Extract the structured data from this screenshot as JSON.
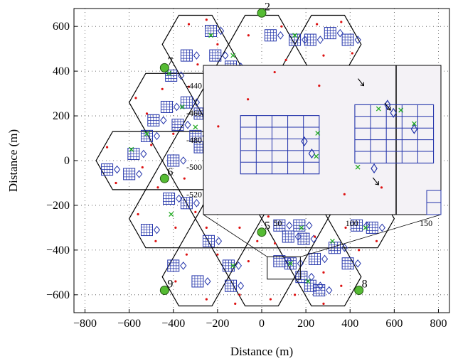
{
  "chart_data": {
    "type": "scatter",
    "xlabel": "Distance (m)",
    "ylabel": "Distance (m)",
    "xlim": [
      -850,
      850
    ],
    "ylim": [
      -680,
      680
    ],
    "x_ticks": [
      "-800",
      "-600",
      "-400",
      "-200",
      "0",
      "200",
      "400",
      "600",
      "800"
    ],
    "y_ticks": [
      "-600",
      "-400",
      "-200",
      "0",
      "200",
      "400",
      "600"
    ],
    "grid": true,
    "cell_radius": 150,
    "cells": [
      {
        "x": -300,
        "y": 520
      },
      {
        "x": 0,
        "y": 520
      },
      {
        "x": 300,
        "y": 520
      },
      {
        "x": -450,
        "y": 260
      },
      {
        "x": -150,
        "y": 260
      },
      {
        "x": 150,
        "y": 260
      },
      {
        "x": 450,
        "y": 260
      },
      {
        "x": -600,
        "y": 0
      },
      {
        "x": -300,
        "y": 0
      },
      {
        "x": 0,
        "y": 0
      },
      {
        "x": 300,
        "y": 0
      },
      {
        "x": -450,
        "y": -260
      },
      {
        "x": -150,
        "y": -260
      },
      {
        "x": 150,
        "y": -260
      },
      {
        "x": 450,
        "y": -260
      },
      {
        "x": -300,
        "y": -520
      },
      {
        "x": 0,
        "y": -520
      },
      {
        "x": 300,
        "y": -520
      }
    ],
    "base_stations": [
      {
        "label": "2",
        "x": 0,
        "y": 660
      },
      {
        "label": "7",
        "x": -440,
        "y": 415
      },
      {
        "label": "6",
        "x": -440,
        "y": -80
      },
      {
        "label": "5",
        "x": 0,
        "y": -320
      },
      {
        "label": "9",
        "x": -440,
        "y": -580
      },
      {
        "label": "8",
        "x": 440,
        "y": -580
      }
    ],
    "building_blocks": [
      {
        "x": -340,
        "y": 470
      },
      {
        "x": -230,
        "y": 580
      },
      {
        "x": -210,
        "y": 470
      },
      {
        "x": -140,
        "y": 420
      },
      {
        "x": 40,
        "y": 560
      },
      {
        "x": 150,
        "y": 540
      },
      {
        "x": 220,
        "y": 540
      },
      {
        "x": 310,
        "y": 570
      },
      {
        "x": 390,
        "y": 540
      },
      {
        "x": -410,
        "y": 380
      },
      {
        "x": -430,
        "y": 240
      },
      {
        "x": -490,
        "y": 180
      },
      {
        "x": -380,
        "y": 160
      },
      {
        "x": -340,
        "y": 260
      },
      {
        "x": -280,
        "y": 210
      },
      {
        "x": -300,
        "y": 110
      },
      {
        "x": -520,
        "y": 110
      },
      {
        "x": -700,
        "y": -40
      },
      {
        "x": -600,
        "y": -60
      },
      {
        "x": -580,
        "y": 30
      },
      {
        "x": -400,
        "y": 0
      },
      {
        "x": -280,
        "y": 60
      },
      {
        "x": -420,
        "y": -170
      },
      {
        "x": -340,
        "y": -190
      },
      {
        "x": -520,
        "y": -310
      },
      {
        "x": -240,
        "y": -360
      },
      {
        "x": -400,
        "y": -470
      },
      {
        "x": -290,
        "y": -540
      },
      {
        "x": -150,
        "y": -470
      },
      {
        "x": -140,
        "y": -560
      },
      {
        "x": 80,
        "y": -290
      },
      {
        "x": 120,
        "y": -340
      },
      {
        "x": 170,
        "y": -290
      },
      {
        "x": 190,
        "y": -350
      },
      {
        "x": 80,
        "y": -450
      },
      {
        "x": 130,
        "y": -460
      },
      {
        "x": 180,
        "y": -520
      },
      {
        "x": 240,
        "y": -440
      },
      {
        "x": 220,
        "y": -560
      },
      {
        "x": 260,
        "y": -580
      },
      {
        "x": 330,
        "y": -390
      },
      {
        "x": 390,
        "y": -460
      },
      {
        "x": 430,
        "y": -290
      },
      {
        "x": 500,
        "y": -300
      }
    ],
    "green_x_marks": [
      {
        "x": -230,
        "y": 560
      },
      {
        "x": -130,
        "y": 470
      },
      {
        "x": 150,
        "y": 560
      },
      {
        "x": -420,
        "y": 390
      },
      {
        "x": -360,
        "y": 240
      },
      {
        "x": -300,
        "y": 150
      },
      {
        "x": -520,
        "y": 120
      },
      {
        "x": -590,
        "y": 50
      },
      {
        "x": -410,
        "y": -240
      },
      {
        "x": -130,
        "y": -470
      },
      {
        "x": 130,
        "y": -460
      },
      {
        "x": 180,
        "y": -300
      },
      {
        "x": 320,
        "y": -360
      },
      {
        "x": 470,
        "y": -300
      },
      {
        "x": 210,
        "y": -540
      }
    ],
    "inset": {
      "x_ticks": [
        "50",
        "100",
        "150"
      ],
      "y_ticks": [
        "-440",
        "-460",
        "-480",
        "-500",
        "-520"
      ],
      "xlim": [
        0,
        160
      ],
      "ylim": [
        -535,
        -425
      ],
      "grid_blocks": [
        {
          "x0": 25,
          "y0": -505,
          "x1": 78,
          "y1": -462
        },
        {
          "x0": 102,
          "y0": -497,
          "x1": 155,
          "y1": -454
        }
      ],
      "diamonds": [
        {
          "x": 68,
          "y": -481
        },
        {
          "x": 73,
          "y": -490
        },
        {
          "x": 115,
          "y": -501
        },
        {
          "x": 124,
          "y": -454
        },
        {
          "x": 128,
          "y": -460
        },
        {
          "x": 142,
          "y": -472
        }
      ],
      "x_marks": [
        {
          "x": 77,
          "y": -475
        },
        {
          "x": 76,
          "y": -492
        },
        {
          "x": 104,
          "y": -500
        },
        {
          "x": 118,
          "y": -457
        },
        {
          "x": 133,
          "y": -458
        },
        {
          "x": 142,
          "y": -468
        }
      ],
      "arrows": [
        {
          "x": 108,
          "y": -440
        },
        {
          "x": 126,
          "y": -458
        },
        {
          "x": 118,
          "y": -513
        }
      ],
      "points": [
        {
          "x": 30,
          "y": -450
        },
        {
          "x": 48,
          "y": -430
        },
        {
          "x": 78,
          "y": -440
        },
        {
          "x": 120,
          "y": -515
        },
        {
          "x": 95,
          "y": -520
        },
        {
          "x": 10,
          "y": -470
        }
      ]
    },
    "users": [
      {
        "x": -330,
        "y": 610
      },
      {
        "x": -250,
        "y": 630
      },
      {
        "x": -200,
        "y": 520
      },
      {
        "x": -290,
        "y": 430
      },
      {
        "x": -180,
        "y": 380
      },
      {
        "x": -60,
        "y": 560
      },
      {
        "x": -40,
        "y": 420
      },
      {
        "x": 90,
        "y": 600
      },
      {
        "x": 110,
        "y": 450
      },
      {
        "x": 250,
        "y": 610
      },
      {
        "x": 280,
        "y": 470
      },
      {
        "x": 360,
        "y": 620
      },
      {
        "x": 410,
        "y": 480
      },
      {
        "x": -570,
        "y": 280
      },
      {
        "x": -520,
        "y": 210
      },
      {
        "x": -450,
        "y": 320
      },
      {
        "x": -400,
        "y": 120
      },
      {
        "x": -330,
        "y": 330
      },
      {
        "x": -250,
        "y": 120
      },
      {
        "x": -230,
        "y": 300
      },
      {
        "x": -700,
        "y": 60
      },
      {
        "x": -660,
        "y": -100
      },
      {
        "x": -540,
        "y": -30
      },
      {
        "x": -500,
        "y": 70
      },
      {
        "x": -470,
        "y": -120
      },
      {
        "x": -350,
        "y": -80
      },
      {
        "x": -260,
        "y": -30
      },
      {
        "x": -220,
        "y": 30
      },
      {
        "x": -560,
        "y": -240
      },
      {
        "x": -480,
        "y": -360
      },
      {
        "x": -390,
        "y": -300
      },
      {
        "x": -300,
        "y": -230
      },
      {
        "x": -250,
        "y": -300
      },
      {
        "x": -180,
        "y": -180
      },
      {
        "x": -100,
        "y": -300
      },
      {
        "x": -60,
        "y": -220
      },
      {
        "x": -390,
        "y": -540
      },
      {
        "x": -340,
        "y": -420
      },
      {
        "x": -250,
        "y": -620
      },
      {
        "x": -200,
        "y": -420
      },
      {
        "x": -100,
        "y": -600
      },
      {
        "x": -60,
        "y": -450
      },
      {
        "x": 40,
        "y": -620
      },
      {
        "x": 60,
        "y": -370
      },
      {
        "x": 150,
        "y": -600
      },
      {
        "x": 240,
        "y": -340
      },
      {
        "x": 280,
        "y": -500
      },
      {
        "x": 360,
        "y": -560
      },
      {
        "x": 380,
        "y": -300
      },
      {
        "x": 440,
        "y": -400
      },
      {
        "x": 520,
        "y": -360
      },
      {
        "x": 560,
        "y": -200
      },
      {
        "x": 30,
        "y": -250
      },
      {
        "x": -20,
        "y": -360
      },
      {
        "x": 280,
        "y": -640
      },
      {
        "x": -120,
        "y": -640
      }
    ]
  }
}
